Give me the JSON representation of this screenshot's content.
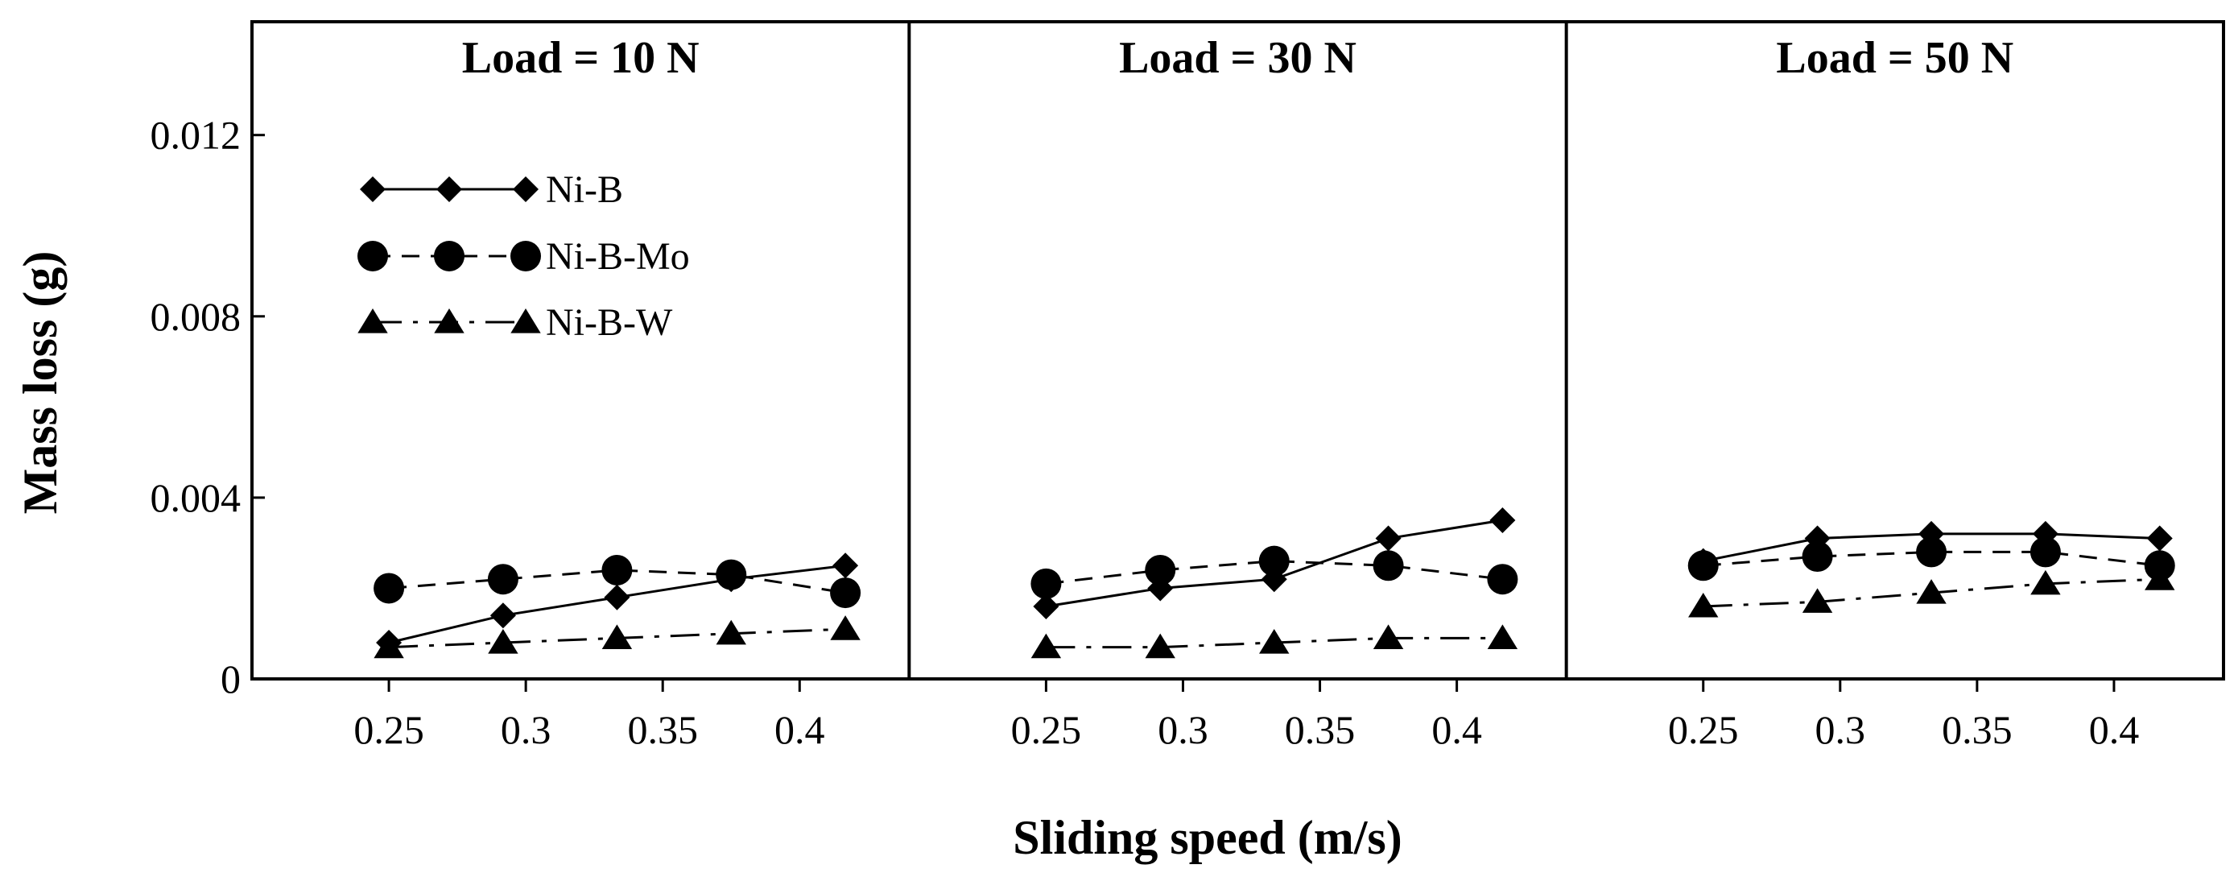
{
  "chart_data": {
    "type": "line",
    "ylabel": "Mass loss (g)",
    "xlabel": "Sliding speed (m/s)",
    "ylim": [
      0,
      0.0145
    ],
    "yticks": [
      0,
      0.004,
      0.008,
      0.012
    ],
    "ytick_labels": [
      "0",
      "0.004",
      "0.008",
      "0.012"
    ],
    "xlim": [
      0.2,
      0.44
    ],
    "xticks": [
      0.25,
      0.3,
      0.35,
      0.4
    ],
    "xtick_labels": [
      "0.25",
      "0.3",
      "0.35",
      "0.4"
    ],
    "legend": [
      {
        "name": "Ni-B",
        "label": "Ni-B"
      },
      {
        "name": "Ni-B-Mo",
        "label": "Ni-B-Mo"
      },
      {
        "name": "Ni-B-W",
        "label": "Ni-B-W"
      }
    ],
    "legend_position": "top-left of first panel",
    "panels": [
      {
        "title": "Load = 10 N",
        "x": [
          0.25,
          0.2917,
          0.3333,
          0.375,
          0.4167
        ],
        "series": [
          {
            "name": "Ni-B",
            "marker": "diamond",
            "line": "solid",
            "values": [
              0.0008,
              0.0014,
              0.0018,
              0.0022,
              0.0025
            ]
          },
          {
            "name": "Ni-B-Mo",
            "marker": "circle",
            "line": "dashed",
            "values": [
              0.002,
              0.0022,
              0.0024,
              0.0023,
              0.0019
            ]
          },
          {
            "name": "Ni-B-W",
            "marker": "triangle",
            "line": "dashdot",
            "values": [
              0.0007,
              0.0008,
              0.0009,
              0.001,
              0.0011
            ]
          }
        ]
      },
      {
        "title": "Load = 30 N",
        "x": [
          0.25,
          0.2917,
          0.3333,
          0.375,
          0.4167
        ],
        "series": [
          {
            "name": "Ni-B",
            "marker": "diamond",
            "line": "solid",
            "values": [
              0.0016,
              0.002,
              0.0022,
              0.0031,
              0.0035
            ]
          },
          {
            "name": "Ni-B-Mo",
            "marker": "circle",
            "line": "dashed",
            "values": [
              0.0021,
              0.0024,
              0.0026,
              0.0025,
              0.0022
            ]
          },
          {
            "name": "Ni-B-W",
            "marker": "triangle",
            "line": "dashdot",
            "values": [
              0.0007,
              0.0007,
              0.0008,
              0.0009,
              0.0009
            ]
          }
        ]
      },
      {
        "title": "Load = 50 N",
        "x": [
          0.25,
          0.2917,
          0.3333,
          0.375,
          0.4167
        ],
        "series": [
          {
            "name": "Ni-B",
            "marker": "diamond",
            "line": "solid",
            "values": [
              0.0026,
              0.0031,
              0.0032,
              0.0032,
              0.0031
            ]
          },
          {
            "name": "Ni-B-Mo",
            "marker": "circle",
            "line": "dashed",
            "values": [
              0.0025,
              0.0027,
              0.0028,
              0.0028,
              0.0025
            ]
          },
          {
            "name": "Ni-B-W",
            "marker": "triangle",
            "line": "dashdot",
            "values": [
              0.0016,
              0.0017,
              0.0019,
              0.0021,
              0.0022
            ]
          }
        ]
      }
    ]
  }
}
